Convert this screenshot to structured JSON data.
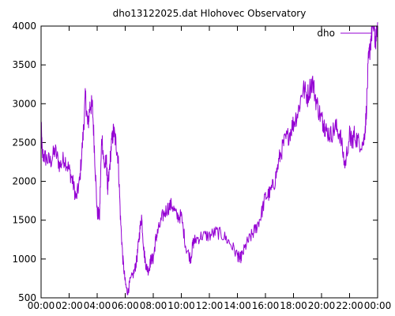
{
  "chart_data": {
    "type": "line",
    "title": "dho13122025.dat Hlohovec Observatory",
    "xlabel": "",
    "ylabel": "",
    "x_ticks": [
      "00:00",
      "02:00",
      "04:00",
      "06:00",
      "08:00",
      "10:00",
      "12:00",
      "14:00",
      "16:00",
      "18:00",
      "20:00",
      "22:00",
      "00:00"
    ],
    "y_ticks": [
      "500",
      "1000",
      "1500",
      "2000",
      "2500",
      "3000",
      "3500",
      "4000"
    ],
    "xlim": [
      "00:00",
      "24:00"
    ],
    "ylim": [
      500,
      4000
    ],
    "grid": false,
    "legend_position": "top-right",
    "series": [
      {
        "name": "dho",
        "color": "#9400d3",
        "x": [
          "00:00",
          "00:05",
          "00:20",
          "00:40",
          "01:00",
          "01:20",
          "01:40",
          "02:00",
          "02:15",
          "02:30",
          "02:45",
          "03:00",
          "03:10",
          "03:20",
          "03:30",
          "03:40",
          "03:50",
          "04:00",
          "04:10",
          "04:20",
          "04:30",
          "04:40",
          "04:45",
          "04:50",
          "05:00",
          "05:10",
          "05:20",
          "05:30",
          "05:40",
          "05:50",
          "06:00",
          "06:10",
          "06:20",
          "06:40",
          "06:50",
          "07:00",
          "07:10",
          "07:20",
          "07:30",
          "07:40",
          "07:50",
          "08:00",
          "08:10",
          "08:20",
          "08:40",
          "09:00",
          "09:20",
          "09:40",
          "10:00",
          "10:20",
          "10:40",
          "10:50",
          "11:00",
          "11:30",
          "12:00",
          "12:30",
          "13:00",
          "13:30",
          "14:00",
          "14:10",
          "14:20",
          "14:40",
          "15:00",
          "15:20",
          "15:40",
          "16:00",
          "16:20",
          "16:40",
          "17:00",
          "17:20",
          "17:40",
          "18:00",
          "18:20",
          "18:40",
          "19:00",
          "19:20",
          "19:40",
          "20:00",
          "20:10",
          "20:20",
          "20:40",
          "21:00",
          "21:20",
          "21:40",
          "22:00",
          "22:10",
          "22:20",
          "22:40",
          "23:00",
          "23:10",
          "23:20",
          "23:30",
          "23:40",
          "23:50",
          "24:00"
        ],
        "y": [
          2750,
          2350,
          2300,
          2250,
          2400,
          2200,
          2300,
          2150,
          2000,
          1780,
          2000,
          2600,
          3100,
          2700,
          3000,
          2950,
          2300,
          1600,
          1550,
          2600,
          2200,
          2250,
          1900,
          2050,
          2450,
          2650,
          2500,
          2300,
          1500,
          1000,
          700,
          550,
          700,
          850,
          1000,
          1300,
          1550,
          1100,
          900,
          850,
          1000,
          1000,
          1250,
          1350,
          1550,
          1650,
          1700,
          1550,
          1550,
          1150,
          1000,
          1200,
          1250,
          1300,
          1300,
          1350,
          1300,
          1200,
          1050,
          1000,
          1050,
          1200,
          1300,
          1400,
          1550,
          1800,
          1850,
          2000,
          2300,
          2500,
          2600,
          2750,
          2900,
          3200,
          3100,
          3300,
          3000,
          2800,
          2750,
          2650,
          2600,
          2700,
          2600,
          2200,
          2600,
          2500,
          2600,
          2500,
          2500,
          2800,
          3500,
          3800,
          4050,
          3800,
          4050
        ]
      }
    ]
  }
}
